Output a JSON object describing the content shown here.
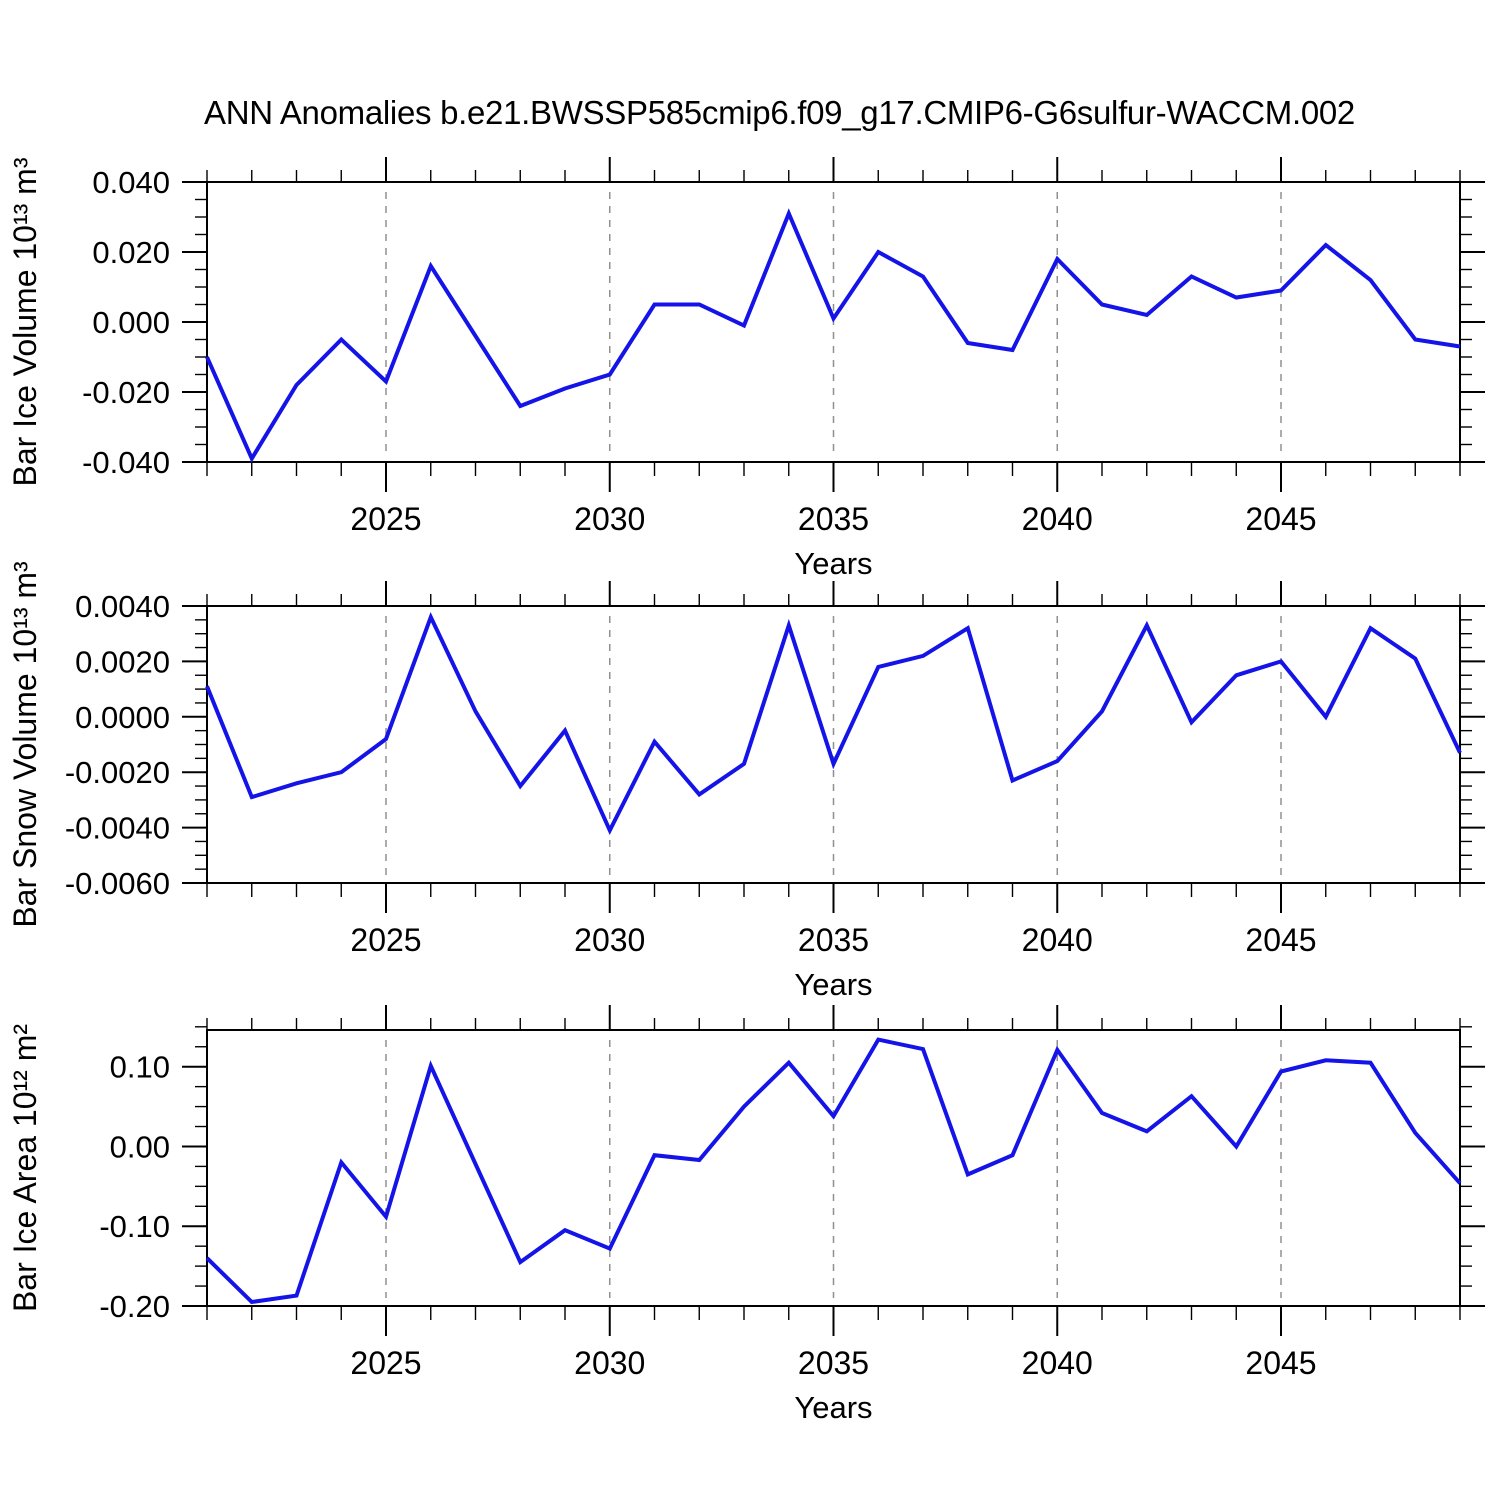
{
  "title": "ANN Anomalies b.e21.BWSSP585cmip6.f09_g17.CMIP6-G6sulfur-WACCM.002",
  "colors": {
    "line": "#1414e8",
    "grid": "#909090",
    "axis": "#000000"
  },
  "chart_data": [
    {
      "type": "line",
      "id": "ice-volume",
      "ylabel": "Bar Ice Volume 10¹³ m³",
      "xlabel": "Years",
      "xlim": [
        2021,
        2049
      ],
      "ylim": [
        -0.04,
        0.04
      ],
      "yticks": [
        0.04,
        0.02,
        0.0,
        -0.02,
        -0.04
      ],
      "ytick_labels": [
        "0.040",
        "0.020",
        "0.000",
        "-0.020",
        "-0.040"
      ],
      "yminor_step": 0.005,
      "xticks": [
        2025,
        2030,
        2035,
        2040,
        2045
      ],
      "xtick_labels": [
        "2025",
        "2030",
        "2035",
        "2040",
        "2045"
      ],
      "xminor_step": 1,
      "grid": "vertical dashed at major x ticks",
      "legend": "none",
      "x": [
        2021,
        2022,
        2023,
        2024,
        2025,
        2026,
        2027,
        2028,
        2029,
        2030,
        2031,
        2032,
        2033,
        2034,
        2035,
        2036,
        2037,
        2038,
        2039,
        2040,
        2041,
        2042,
        2043,
        2044,
        2045,
        2046,
        2047,
        2048,
        2049
      ],
      "values": [
        -0.01,
        -0.039,
        -0.018,
        -0.005,
        -0.017,
        0.016,
        -0.004,
        -0.024,
        -0.019,
        -0.015,
        0.005,
        0.005,
        -0.001,
        0.031,
        0.001,
        0.02,
        0.013,
        -0.006,
        -0.008,
        0.018,
        0.005,
        0.002,
        0.013,
        0.007,
        0.009,
        0.022,
        0.012,
        -0.005,
        -0.007
      ]
    },
    {
      "type": "line",
      "id": "snow-volume",
      "ylabel": "Bar Snow Volume 10¹³ m³",
      "xlabel": "Years",
      "xlim": [
        2021,
        2049
      ],
      "ylim": [
        -0.006,
        0.004
      ],
      "yticks": [
        0.004,
        0.002,
        0.0,
        -0.002,
        -0.004,
        -0.006
      ],
      "ytick_labels": [
        "0.0040",
        "0.0020",
        "0.0000",
        "-0.0020",
        "-0.0040",
        "-0.0060"
      ],
      "yminor_step": 0.0005,
      "xticks": [
        2025,
        2030,
        2035,
        2040,
        2045
      ],
      "xtick_labels": [
        "2025",
        "2030",
        "2035",
        "2040",
        "2045"
      ],
      "xminor_step": 1,
      "grid": "vertical dashed at major x ticks",
      "legend": "none",
      "x": [
        2021,
        2022,
        2023,
        2024,
        2025,
        2026,
        2027,
        2028,
        2029,
        2030,
        2031,
        2032,
        2033,
        2034,
        2035,
        2036,
        2037,
        2038,
        2039,
        2040,
        2041,
        2042,
        2043,
        2044,
        2045,
        2046,
        2047,
        2048,
        2049
      ],
      "values": [
        0.0011,
        -0.0029,
        -0.0024,
        -0.002,
        -0.0008,
        0.0036,
        0.0002,
        -0.0025,
        -0.0005,
        -0.0041,
        -0.0009,
        -0.0028,
        -0.0017,
        0.0033,
        -0.0017,
        0.0018,
        0.0022,
        0.0032,
        -0.0023,
        -0.0016,
        0.0002,
        0.0033,
        -0.0002,
        0.0015,
        0.002,
        0.0,
        0.0032,
        0.0021,
        -0.0013
      ]
    },
    {
      "type": "line",
      "id": "ice-area",
      "ylabel": "Bar Ice Area 10¹² m²",
      "xlabel": "Years",
      "xlim": [
        2021,
        2049
      ],
      "ylim": [
        -0.2,
        0.146
      ],
      "yticks": [
        0.1,
        0.0,
        -0.1,
        -0.2
      ],
      "ytick_labels": [
        "0.10",
        "0.00",
        "-0.10",
        "-0.20"
      ],
      "yminor_step": 0.025,
      "xticks": [
        2025,
        2030,
        2035,
        2040,
        2045
      ],
      "xtick_labels": [
        "2025",
        "2030",
        "2035",
        "2040",
        "2045"
      ],
      "xminor_step": 1,
      "grid": "vertical dashed at major x ticks",
      "legend": "none",
      "x": [
        2021,
        2022,
        2023,
        2024,
        2025,
        2026,
        2027,
        2028,
        2029,
        2030,
        2031,
        2032,
        2033,
        2034,
        2035,
        2036,
        2037,
        2038,
        2039,
        2040,
        2041,
        2042,
        2043,
        2044,
        2045,
        2046,
        2047,
        2048,
        2049
      ],
      "values": [
        -0.14,
        -0.195,
        -0.187,
        -0.02,
        -0.088,
        0.101,
        -0.022,
        -0.145,
        -0.105,
        -0.128,
        -0.011,
        -0.017,
        0.05,
        0.105,
        0.038,
        0.134,
        0.122,
        -0.035,
        -0.011,
        0.121,
        0.042,
        0.019,
        0.063,
        0.0,
        0.094,
        0.108,
        0.105,
        0.017,
        -0.046
      ]
    }
  ]
}
